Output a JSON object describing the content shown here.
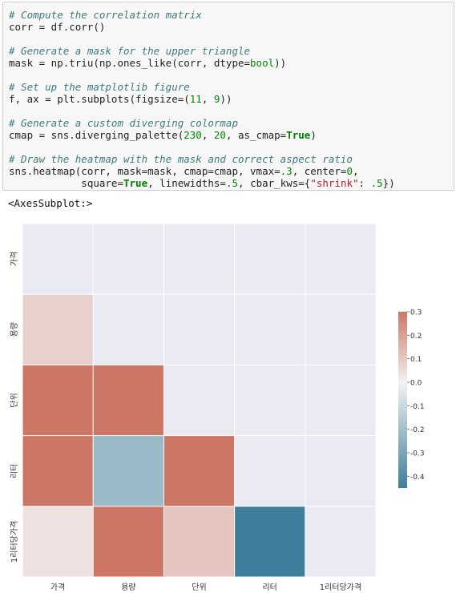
{
  "code_cell": {
    "lines": [
      [
        {
          "t": "# Compute the correlation matrix",
          "c": "comment"
        }
      ],
      [
        {
          "t": "corr = df.corr()",
          "c": ""
        }
      ],
      [],
      [
        {
          "t": "# Generate a mask for the upper triangle",
          "c": "comment"
        }
      ],
      [
        {
          "t": "mask = np.triu(np.ones_like(corr, dtype=",
          "c": ""
        },
        {
          "t": "bool",
          "c": "num"
        },
        {
          "t": "))",
          "c": ""
        }
      ],
      [],
      [
        {
          "t": "# Set up the matplotlib figure",
          "c": "comment"
        }
      ],
      [
        {
          "t": "f, ax = plt.subplots(figsize=(",
          "c": ""
        },
        {
          "t": "11",
          "c": "num"
        },
        {
          "t": ", ",
          "c": ""
        },
        {
          "t": "9",
          "c": "num"
        },
        {
          "t": "))",
          "c": ""
        }
      ],
      [],
      [
        {
          "t": "# Generate a custom diverging colormap",
          "c": "comment"
        }
      ],
      [
        {
          "t": "cmap = sns.diverging_palette(",
          "c": ""
        },
        {
          "t": "230",
          "c": "num"
        },
        {
          "t": ", ",
          "c": ""
        },
        {
          "t": "20",
          "c": "num"
        },
        {
          "t": ", as_cmap=",
          "c": ""
        },
        {
          "t": "True",
          "c": "kw"
        },
        {
          "t": ")",
          "c": ""
        }
      ],
      [],
      [
        {
          "t": "# Draw the heatmap with the mask and correct aspect ratio",
          "c": "comment"
        }
      ],
      [
        {
          "t": "sns.heatmap(corr, mask=mask, cmap=cmap, vmax=",
          "c": ""
        },
        {
          "t": ".3",
          "c": "num"
        },
        {
          "t": ", center=",
          "c": ""
        },
        {
          "t": "0",
          "c": "num"
        },
        {
          "t": ",",
          "c": ""
        }
      ],
      [
        {
          "t": "            square=",
          "c": ""
        },
        {
          "t": "True",
          "c": "kw"
        },
        {
          "t": ", linewidths=",
          "c": ""
        },
        {
          "t": ".5",
          "c": "num"
        },
        {
          "t": ", cbar_kws={",
          "c": ""
        },
        {
          "t": "\"shrink\"",
          "c": "str"
        },
        {
          "t": ": ",
          "c": ""
        },
        {
          "t": ".5",
          "c": "num"
        },
        {
          "t": "})",
          "c": ""
        }
      ]
    ]
  },
  "output_repr": "<AxesSubplot:>",
  "colors": {
    "masked": "#eaeaf2",
    "grid": "#ffffff",
    "cmap_low": "#3f7f9c",
    "cmap_mid": "#f2f2f2",
    "cmap_high": "#cc7766"
  },
  "chart_data": {
    "type": "heatmap",
    "rows": [
      "가격",
      "용량",
      "단위",
      "리터",
      "1리터당가격"
    ],
    "cols": [
      "가격",
      "용량",
      "단위",
      "리터",
      "1리터당가격"
    ],
    "values": [
      [
        null,
        null,
        null,
        null,
        null
      ],
      [
        0.08,
        null,
        null,
        null,
        null
      ],
      [
        0.3,
        0.3,
        null,
        null,
        null
      ],
      [
        0.3,
        -0.22,
        0.3,
        null,
        null
      ],
      [
        0.04,
        0.3,
        0.11,
        -0.45,
        null
      ]
    ],
    "vmin": -0.45,
    "vmax": 0.3,
    "center": 0,
    "colorbar_ticks": [
      "0.3",
      "0.2",
      "0.1",
      "0.0",
      "-0.1",
      "-0.2",
      "-0.3",
      "-0.4"
    ],
    "colorbar_tick_values": [
      0.3,
      0.2,
      0.1,
      0.0,
      -0.1,
      -0.2,
      -0.3,
      -0.4
    ],
    "title": "",
    "xlabel": "",
    "ylabel": ""
  }
}
